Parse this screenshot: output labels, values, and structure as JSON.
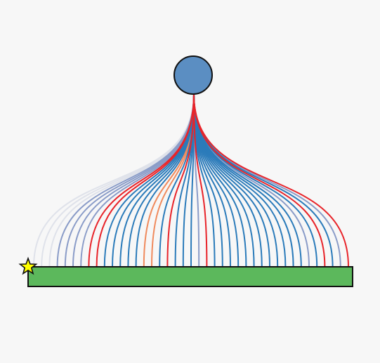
{
  "diagram": {
    "source_node": {
      "fill": "#5b8ec2",
      "stroke": "#111111"
    },
    "target_bar": {
      "fill": "#5cb85c",
      "stroke": "#111111"
    },
    "start_marker": {
      "shape": "star",
      "fill": "#ffff00",
      "stroke": "#111111"
    },
    "palette": {
      "blue": "#2b7bba",
      "red": "#e8242a",
      "orange": "#f08a5d",
      "lavender": "#8a9cc8",
      "light": "#dfe2ea"
    },
    "curves": [
      "light",
      "light",
      "light",
      "lavender",
      "lavender",
      "lavender",
      "lavender",
      "red",
      "red",
      "blue",
      "blue",
      "blue",
      "blue",
      "blue",
      "orange",
      "orange",
      "blue",
      "red",
      "blue",
      "blue",
      "blue",
      "lavender",
      "red",
      "blue",
      "blue",
      "blue",
      "blue",
      "blue",
      "blue",
      "blue",
      "blue",
      "blue",
      "blue",
      "blue",
      "blue",
      "lavender",
      "blue",
      "red",
      "blue",
      "lavender",
      "red"
    ]
  }
}
